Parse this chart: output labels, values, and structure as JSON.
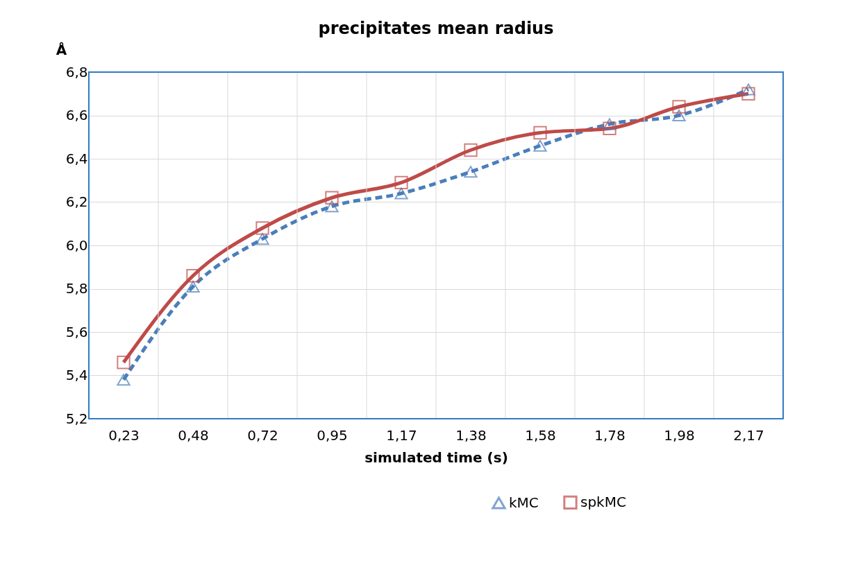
{
  "chart_data": {
    "type": "line",
    "title": "precipitates mean radius",
    "xlabel": "simulated time (s)",
    "ylabel": "Å",
    "categories": [
      "0,23",
      "0,48",
      "0,72",
      "0,95",
      "1,17",
      "1,38",
      "1,58",
      "1,78",
      "1,98",
      "2,17"
    ],
    "series": [
      {
        "name": "kMC",
        "color": "#4a7ebb",
        "marker": "triangle",
        "line_style": "dashed",
        "values": [
          5.38,
          5.81,
          6.03,
          6.18,
          6.24,
          6.34,
          6.46,
          6.56,
          6.6,
          6.72
        ]
      },
      {
        "name": "spkMC",
        "color": "#be4b48",
        "marker": "square",
        "line_style": "solid",
        "values": [
          5.46,
          5.86,
          6.08,
          6.22,
          6.29,
          6.44,
          6.52,
          6.54,
          6.64,
          6.7
        ]
      }
    ],
    "ylim": [
      5.2,
      6.8
    ],
    "yticks": [
      {
        "value": 5.2,
        "label": "5,2"
      },
      {
        "value": 5.4,
        "label": "5,4"
      },
      {
        "value": 5.6,
        "label": "5,6"
      },
      {
        "value": 5.8,
        "label": "5,8"
      },
      {
        "value": 6.0,
        "label": "6,0"
      },
      {
        "value": 6.2,
        "label": "6,2"
      },
      {
        "value": 6.4,
        "label": "6,4"
      },
      {
        "value": 6.6,
        "label": "6,6"
      },
      {
        "value": 6.8,
        "label": "6,8"
      }
    ],
    "grid": true,
    "legend": "bottom right"
  }
}
